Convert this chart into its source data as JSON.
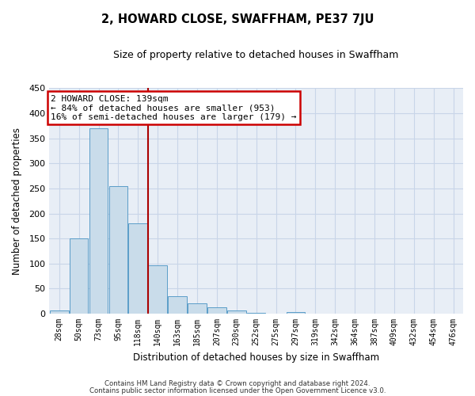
{
  "title": "2, HOWARD CLOSE, SWAFFHAM, PE37 7JU",
  "subtitle": "Size of property relative to detached houses in Swaffham",
  "xlabel": "Distribution of detached houses by size in Swaffham",
  "ylabel": "Number of detached properties",
  "bar_labels": [
    "28sqm",
    "50sqm",
    "73sqm",
    "95sqm",
    "118sqm",
    "140sqm",
    "163sqm",
    "185sqm",
    "207sqm",
    "230sqm",
    "252sqm",
    "275sqm",
    "297sqm",
    "319sqm",
    "342sqm",
    "364sqm",
    "387sqm",
    "409sqm",
    "432sqm",
    "454sqm",
    "476sqm"
  ],
  "bar_values": [
    7,
    150,
    370,
    255,
    180,
    97,
    35,
    21,
    13,
    6,
    2,
    0,
    3,
    0,
    0,
    0,
    0,
    0,
    0,
    0,
    0
  ],
  "bar_color": "#c9dcea",
  "bar_edge_color": "#5b9dc8",
  "grid_color": "#c8d5e8",
  "background_color": "#e8eef6",
  "vline_x_idx": 5,
  "vline_color": "#aa0000",
  "annotation_text": "2 HOWARD CLOSE: 139sqm\n← 84% of detached houses are smaller (953)\n16% of semi-detached houses are larger (179) →",
  "annotation_box_color": "#cc0000",
  "ylim": [
    0,
    450
  ],
  "yticks": [
    0,
    50,
    100,
    150,
    200,
    250,
    300,
    350,
    400,
    450
  ],
  "footer_line1": "Contains HM Land Registry data © Crown copyright and database right 2024.",
  "footer_line2": "Contains public sector information licensed under the Open Government Licence v3.0."
}
